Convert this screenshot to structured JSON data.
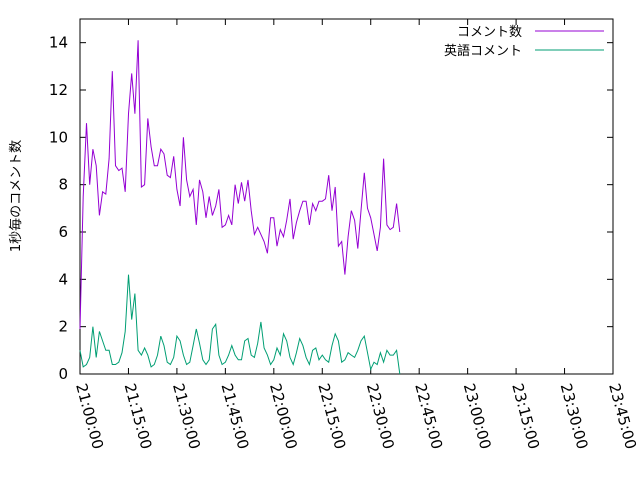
{
  "chart_data": {
    "type": "line",
    "title": "",
    "xlabel": "",
    "ylabel": "1秒毎のコメント数",
    "xlim": [
      "21:00:00",
      "23:45:00"
    ],
    "ylim": [
      0,
      15
    ],
    "x_ticks": [
      "21:00:00",
      "21:15:00",
      "21:30:00",
      "21:45:00",
      "22:00:00",
      "22:15:00",
      "22:30:00",
      "22:45:00",
      "23:00:00",
      "23:15:00",
      "23:30:00",
      "23:45:00"
    ],
    "y_ticks": [
      0,
      2,
      4,
      6,
      8,
      10,
      12,
      14
    ],
    "grid": false,
    "legend_position": "top-right",
    "series": [
      {
        "name": "コメント数",
        "color": "#9400d3",
        "points": [
          [
            "21:00:00",
            1.9
          ],
          [
            "21:01:00",
            7.5
          ],
          [
            "21:02:00",
            10.6
          ],
          [
            "21:03:00",
            8.0
          ],
          [
            "21:04:00",
            9.5
          ],
          [
            "21:05:00",
            8.8
          ],
          [
            "21:06:00",
            6.7
          ],
          [
            "21:07:00",
            7.7
          ],
          [
            "21:08:00",
            7.6
          ],
          [
            "21:09:00",
            9.1
          ],
          [
            "21:10:00",
            12.8
          ],
          [
            "21:11:00",
            8.8
          ],
          [
            "21:12:00",
            8.6
          ],
          [
            "21:13:00",
            8.7
          ],
          [
            "21:14:00",
            7.7
          ],
          [
            "21:15:00",
            11.0
          ],
          [
            "21:16:00",
            12.7
          ],
          [
            "21:17:00",
            11.0
          ],
          [
            "21:18:00",
            14.1
          ],
          [
            "21:19:00",
            7.9
          ],
          [
            "21:20:00",
            8.0
          ],
          [
            "21:21:00",
            10.8
          ],
          [
            "21:22:00",
            9.6
          ],
          [
            "21:23:00",
            8.8
          ],
          [
            "21:24:00",
            8.8
          ],
          [
            "21:25:00",
            9.5
          ],
          [
            "21:26:00",
            9.3
          ],
          [
            "21:27:00",
            8.4
          ],
          [
            "21:28:00",
            8.3
          ],
          [
            "21:29:00",
            9.2
          ],
          [
            "21:30:00",
            7.8
          ],
          [
            "21:31:00",
            7.1
          ],
          [
            "21:32:00",
            10.0
          ],
          [
            "21:33:00",
            8.2
          ],
          [
            "21:34:00",
            7.5
          ],
          [
            "21:35:00",
            7.8
          ],
          [
            "21:36:00",
            6.3
          ],
          [
            "21:37:00",
            8.2
          ],
          [
            "21:38:00",
            7.7
          ],
          [
            "21:39:00",
            6.6
          ],
          [
            "21:40:00",
            7.5
          ],
          [
            "21:41:00",
            6.7
          ],
          [
            "21:42:00",
            7.1
          ],
          [
            "21:43:00",
            7.8
          ],
          [
            "21:44:00",
            6.2
          ],
          [
            "21:45:00",
            6.3
          ],
          [
            "21:46:00",
            6.7
          ],
          [
            "21:47:00",
            6.3
          ],
          [
            "21:48:00",
            8.0
          ],
          [
            "21:49:00",
            7.2
          ],
          [
            "21:50:00",
            8.1
          ],
          [
            "21:51:00",
            7.3
          ],
          [
            "21:52:00",
            8.2
          ],
          [
            "21:53:00",
            6.9
          ],
          [
            "21:54:00",
            5.9
          ],
          [
            "21:55:00",
            6.2
          ],
          [
            "21:56:00",
            5.9
          ],
          [
            "21:57:00",
            5.6
          ],
          [
            "21:58:00",
            5.1
          ],
          [
            "21:59:00",
            6.6
          ],
          [
            "22:00:00",
            6.6
          ],
          [
            "22:01:00",
            5.4
          ],
          [
            "22:02:00",
            6.1
          ],
          [
            "22:03:00",
            5.8
          ],
          [
            "22:04:00",
            6.5
          ],
          [
            "22:05:00",
            7.4
          ],
          [
            "22:06:00",
            5.7
          ],
          [
            "22:07:00",
            6.4
          ],
          [
            "22:08:00",
            6.9
          ],
          [
            "22:09:00",
            7.3
          ],
          [
            "22:10:00",
            7.3
          ],
          [
            "22:11:00",
            6.3
          ],
          [
            "22:12:00",
            7.2
          ],
          [
            "22:13:00",
            6.9
          ],
          [
            "22:14:00",
            7.3
          ],
          [
            "22:15:00",
            7.3
          ],
          [
            "22:16:00",
            7.4
          ],
          [
            "22:17:00",
            8.4
          ],
          [
            "22:18:00",
            6.9
          ],
          [
            "22:19:00",
            7.9
          ],
          [
            "22:20:00",
            5.4
          ],
          [
            "22:21:00",
            5.6
          ],
          [
            "22:22:00",
            4.2
          ],
          [
            "22:23:00",
            5.8
          ],
          [
            "22:24:00",
            6.9
          ],
          [
            "22:25:00",
            6.5
          ],
          [
            "22:26:00",
            5.3
          ],
          [
            "22:27:00",
            6.9
          ],
          [
            "22:28:00",
            8.5
          ],
          [
            "22:29:00",
            7.0
          ],
          [
            "22:30:00",
            6.6
          ],
          [
            "22:31:00",
            5.9
          ],
          [
            "22:32:00",
            5.2
          ],
          [
            "22:33:00",
            6.2
          ],
          [
            "22:34:00",
            9.1
          ],
          [
            "22:35:00",
            6.3
          ],
          [
            "22:36:00",
            6.1
          ],
          [
            "22:37:00",
            6.2
          ],
          [
            "22:38:00",
            7.2
          ],
          [
            "22:39:00",
            6.0
          ]
        ]
      },
      {
        "name": "英語コメント",
        "color": "#009e73",
        "points": [
          [
            "21:00:00",
            1.0
          ],
          [
            "21:01:00",
            0.3
          ],
          [
            "21:02:00",
            0.4
          ],
          [
            "21:03:00",
            0.7
          ],
          [
            "21:04:00",
            2.0
          ],
          [
            "21:05:00",
            0.7
          ],
          [
            "21:06:00",
            1.8
          ],
          [
            "21:07:00",
            1.4
          ],
          [
            "21:08:00",
            1.0
          ],
          [
            "21:09:00",
            1.0
          ],
          [
            "21:10:00",
            0.4
          ],
          [
            "21:11:00",
            0.4
          ],
          [
            "21:12:00",
            0.5
          ],
          [
            "21:13:00",
            0.9
          ],
          [
            "21:14:00",
            1.8
          ],
          [
            "21:15:00",
            4.2
          ],
          [
            "21:16:00",
            2.3
          ],
          [
            "21:17:00",
            3.4
          ],
          [
            "21:18:00",
            1.0
          ],
          [
            "21:19:00",
            0.8
          ],
          [
            "21:20:00",
            1.1
          ],
          [
            "21:21:00",
            0.8
          ],
          [
            "21:22:00",
            0.3
          ],
          [
            "21:23:00",
            0.4
          ],
          [
            "21:24:00",
            0.8
          ],
          [
            "21:25:00",
            1.6
          ],
          [
            "21:26:00",
            1.2
          ],
          [
            "21:27:00",
            0.5
          ],
          [
            "21:28:00",
            0.4
          ],
          [
            "21:29:00",
            0.7
          ],
          [
            "21:30:00",
            1.6
          ],
          [
            "21:31:00",
            1.4
          ],
          [
            "21:32:00",
            0.8
          ],
          [
            "21:33:00",
            0.4
          ],
          [
            "21:34:00",
            0.5
          ],
          [
            "21:35:00",
            1.2
          ],
          [
            "21:36:00",
            1.9
          ],
          [
            "21:37:00",
            1.3
          ],
          [
            "21:38:00",
            0.6
          ],
          [
            "21:39:00",
            0.4
          ],
          [
            "21:40:00",
            0.6
          ],
          [
            "21:41:00",
            1.9
          ],
          [
            "21:42:00",
            2.1
          ],
          [
            "21:43:00",
            0.8
          ],
          [
            "21:44:00",
            0.4
          ],
          [
            "21:45:00",
            0.5
          ],
          [
            "21:46:00",
            0.8
          ],
          [
            "21:47:00",
            1.2
          ],
          [
            "21:48:00",
            0.8
          ],
          [
            "21:49:00",
            0.6
          ],
          [
            "21:50:00",
            0.6
          ],
          [
            "21:51:00",
            1.4
          ],
          [
            "21:52:00",
            1.5
          ],
          [
            "21:53:00",
            0.8
          ],
          [
            "21:54:00",
            0.7
          ],
          [
            "21:55:00",
            1.3
          ],
          [
            "21:56:00",
            2.2
          ],
          [
            "21:57:00",
            1.1
          ],
          [
            "21:58:00",
            0.8
          ],
          [
            "21:59:00",
            0.4
          ],
          [
            "22:00:00",
            0.6
          ],
          [
            "22:01:00",
            1.1
          ],
          [
            "22:02:00",
            0.8
          ],
          [
            "22:03:00",
            1.7
          ],
          [
            "22:04:00",
            1.4
          ],
          [
            "22:05:00",
            0.7
          ],
          [
            "22:06:00",
            0.4
          ],
          [
            "22:07:00",
            0.9
          ],
          [
            "22:08:00",
            1.5
          ],
          [
            "22:09:00",
            1.2
          ],
          [
            "22:10:00",
            0.7
          ],
          [
            "22:11:00",
            0.4
          ],
          [
            "22:12:00",
            1.0
          ],
          [
            "22:13:00",
            1.1
          ],
          [
            "22:14:00",
            0.6
          ],
          [
            "22:15:00",
            0.8
          ],
          [
            "22:16:00",
            0.6
          ],
          [
            "22:17:00",
            0.5
          ],
          [
            "22:18:00",
            1.2
          ],
          [
            "22:19:00",
            1.7
          ],
          [
            "22:20:00",
            1.4
          ],
          [
            "22:21:00",
            0.5
          ],
          [
            "22:22:00",
            0.6
          ],
          [
            "22:23:00",
            0.9
          ],
          [
            "22:24:00",
            0.8
          ],
          [
            "22:25:00",
            0.7
          ],
          [
            "22:26:00",
            1.0
          ],
          [
            "22:27:00",
            1.4
          ],
          [
            "22:28:00",
            1.6
          ],
          [
            "22:29:00",
            0.9
          ],
          [
            "22:30:00",
            0.2
          ],
          [
            "22:31:00",
            0.5
          ],
          [
            "22:32:00",
            0.4
          ],
          [
            "22:33:00",
            0.9
          ],
          [
            "22:34:00",
            0.5
          ],
          [
            "22:35:00",
            1.0
          ],
          [
            "22:36:00",
            0.8
          ],
          [
            "22:37:00",
            0.8
          ],
          [
            "22:38:00",
            1.0
          ],
          [
            "22:39:00",
            0.0
          ]
        ]
      }
    ]
  }
}
